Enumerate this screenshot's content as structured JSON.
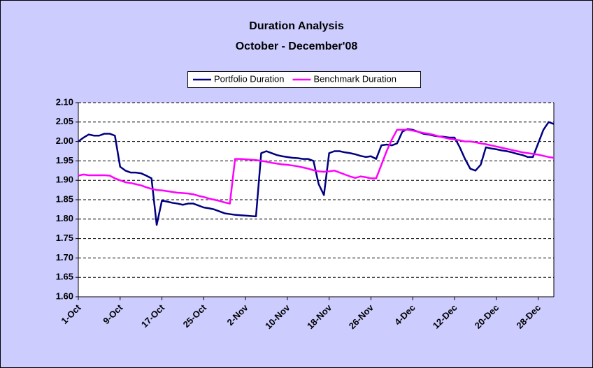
{
  "chart_data": {
    "type": "line",
    "title": "Duration Analysis",
    "subtitle": "October - December'08",
    "categories": [
      "1-Oct",
      null,
      null,
      null,
      null,
      null,
      null,
      null,
      "9-Oct",
      null,
      null,
      null,
      null,
      null,
      null,
      null,
      "17-Oct",
      null,
      null,
      null,
      null,
      null,
      null,
      null,
      "25-Oct",
      null,
      null,
      null,
      null,
      null,
      null,
      null,
      "2-Nov",
      null,
      null,
      null,
      null,
      null,
      null,
      null,
      "10-Nov",
      null,
      null,
      null,
      null,
      null,
      null,
      null,
      "18-Nov",
      null,
      null,
      null,
      null,
      null,
      null,
      null,
      "26-Nov",
      null,
      null,
      null,
      null,
      null,
      null,
      null,
      "4-Dec",
      null,
      null,
      null,
      null,
      null,
      null,
      null,
      "12-Dec",
      null,
      null,
      null,
      null,
      null,
      null,
      null,
      "20-Dec",
      null,
      null,
      null,
      null,
      null,
      null,
      null,
      "28-Dec",
      null,
      null,
      null
    ],
    "series": [
      {
        "name": "Portfolio Duration",
        "color": "#000080",
        "values": [
          2.0,
          2.01,
          2.018,
          2.015,
          2.015,
          2.02,
          2.02,
          2.015,
          1.935,
          1.925,
          1.92,
          1.92,
          1.918,
          1.912,
          1.905,
          1.785,
          1.848,
          1.845,
          1.842,
          1.84,
          1.837,
          1.84,
          1.84,
          1.835,
          1.83,
          1.828,
          1.825,
          1.82,
          1.815,
          1.813,
          1.811,
          1.81,
          1.809,
          1.808,
          1.807,
          1.97,
          1.975,
          1.97,
          1.965,
          1.962,
          1.96,
          1.958,
          1.957,
          1.955,
          1.955,
          1.95,
          1.89,
          1.862,
          1.97,
          1.975,
          1.975,
          1.972,
          1.97,
          1.967,
          1.963,
          1.96,
          1.962,
          1.955,
          1.99,
          1.992,
          1.99,
          1.995,
          2.025,
          2.032,
          2.03,
          2.025,
          2.02,
          2.018,
          2.015,
          2.013,
          2.012,
          2.01,
          2.01,
          1.985,
          1.955,
          1.93,
          1.925,
          1.94,
          1.985,
          1.982,
          1.98,
          1.977,
          1.975,
          1.972,
          1.968,
          1.965,
          1.96,
          1.96,
          1.995,
          2.03,
          2.05,
          2.045
        ]
      },
      {
        "name": "Benchmark Duration",
        "color": "#ff00ff",
        "values": [
          1.912,
          1.915,
          1.913,
          1.913,
          1.913,
          1.913,
          1.912,
          1.905,
          1.9,
          1.895,
          1.893,
          1.89,
          1.887,
          1.882,
          1.878,
          1.875,
          1.874,
          1.872,
          1.87,
          1.868,
          1.867,
          1.866,
          1.864,
          1.86,
          1.857,
          1.853,
          1.85,
          1.847,
          1.843,
          1.84,
          1.955,
          1.955,
          1.954,
          1.953,
          1.952,
          1.95,
          1.948,
          1.945,
          1.943,
          1.941,
          1.94,
          1.938,
          1.936,
          1.933,
          1.93,
          1.926,
          1.923,
          1.922,
          1.923,
          1.925,
          1.92,
          1.915,
          1.91,
          1.906,
          1.91,
          1.908,
          1.905,
          1.905,
          1.94,
          1.975,
          2.005,
          2.03,
          2.03,
          2.03,
          2.028,
          2.025,
          2.022,
          2.02,
          2.017,
          2.013,
          2.01,
          2.007,
          2.005,
          2.003,
          2.0,
          2.0,
          1.998,
          1.995,
          1.993,
          1.99,
          1.987,
          1.984,
          1.981,
          1.978,
          1.975,
          1.972,
          1.97,
          1.968,
          1.966,
          1.963,
          1.96,
          1.958
        ]
      }
    ],
    "ylim": [
      1.6,
      2.1
    ],
    "yticks": [
      {
        "value": 1.6,
        "label": "1.60"
      },
      1.65,
      {
        "value": 1.7,
        "label": "1.70"
      },
      1.75,
      {
        "value": 1.8,
        "label": "1.80"
      },
      1.85,
      {
        "value": 1.9,
        "label": "1.90"
      },
      1.95,
      {
        "value": 2.0,
        "label": "2.00"
      },
      2.05,
      {
        "value": 2.1,
        "label": "2.10"
      }
    ],
    "grid": true,
    "legend": "top"
  }
}
